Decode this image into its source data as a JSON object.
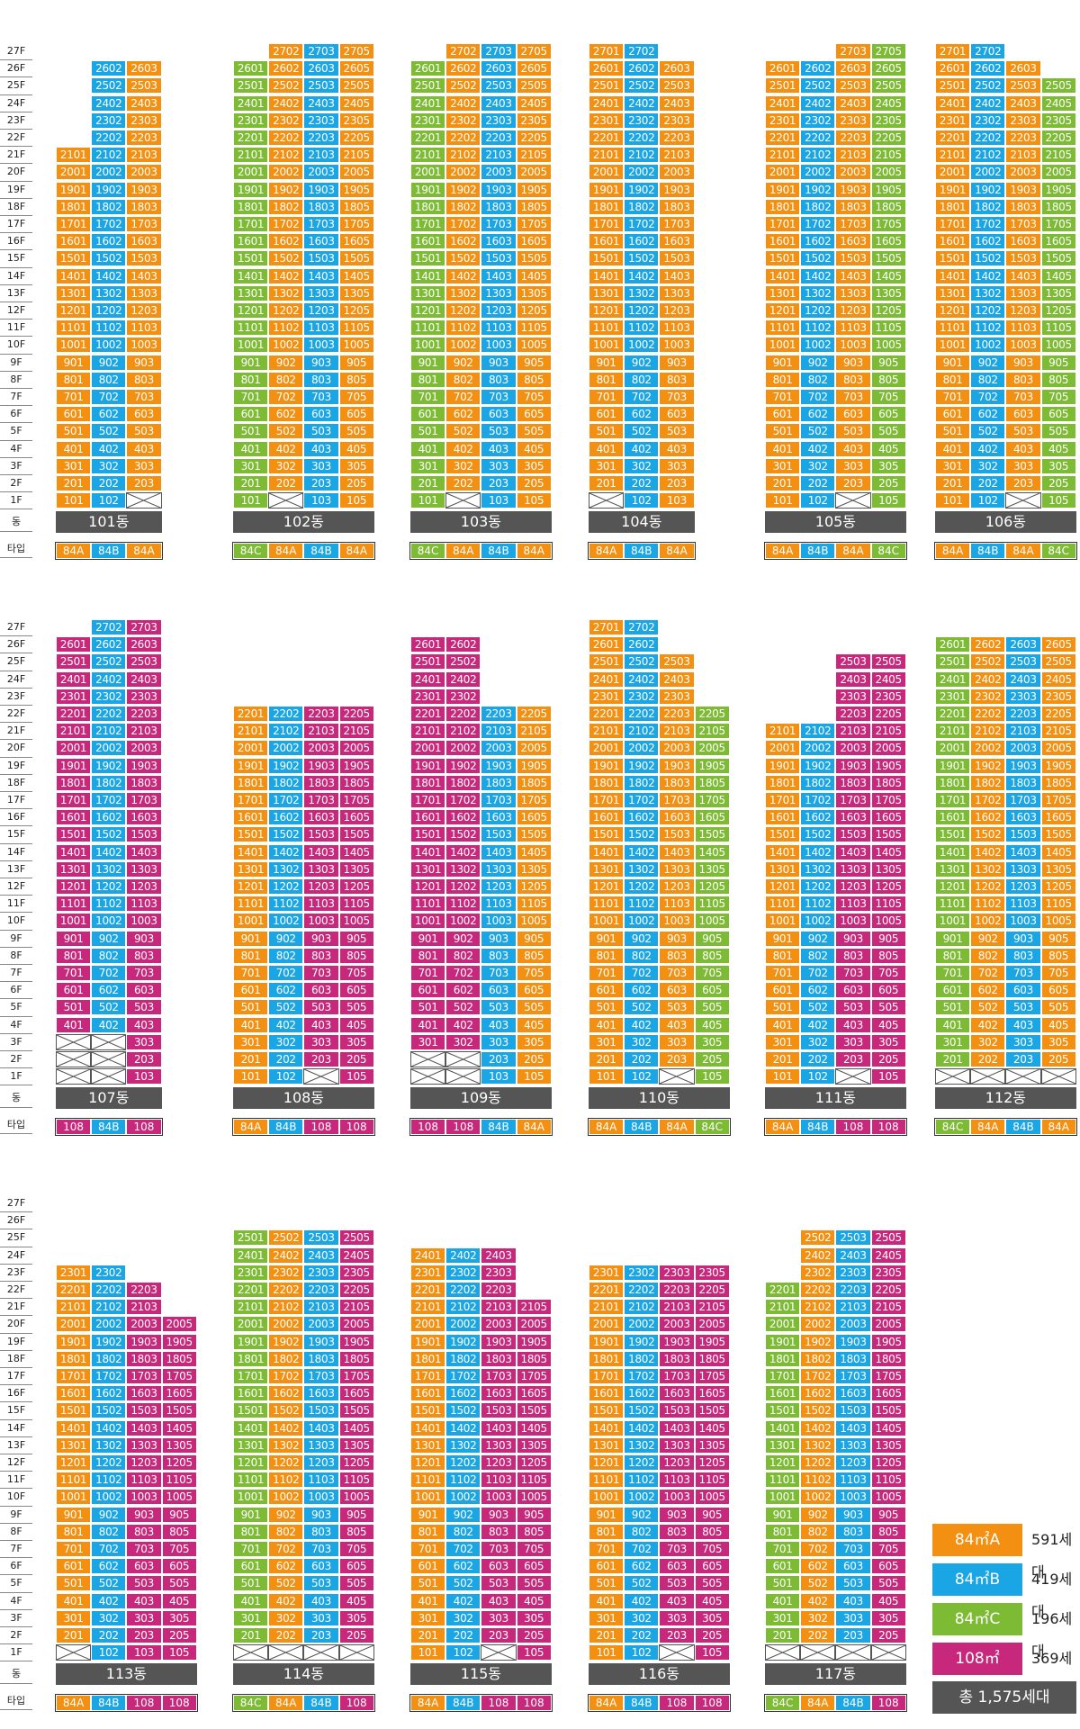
{
  "colors": {
    "84A": "#f39012",
    "84B": "#1aa6e4",
    "84C": "#7dbb35",
    "108": "#c8287b"
  },
  "labels": {
    "dong": "동",
    "type": "타입"
  },
  "floors": [
    "27F",
    "26F",
    "25F",
    "24F",
    "23F",
    "22F",
    "21F",
    "20F",
    "19F",
    "18F",
    "17F",
    "16F",
    "15F",
    "14F",
    "13F",
    "12F",
    "11F",
    "10F",
    "9F",
    "8F",
    "7F",
    "6F",
    "5F",
    "4F",
    "3F",
    "2F",
    "1F"
  ],
  "buildings": [
    {
      "name": "101동",
      "cols": [
        {
          "line": 1,
          "type": "84A",
          "min": 1,
          "max": 21
        },
        {
          "line": 2,
          "type": "84B",
          "min": 1,
          "max": 26
        },
        {
          "line": 3,
          "type": "84A",
          "min": 2,
          "max": 26
        }
      ],
      "types": [
        "84A",
        "84B",
        "84A"
      ]
    },
    {
      "name": "102동",
      "cols": [
        {
          "line": 1,
          "type": "84C",
          "min": 1,
          "max": 26
        },
        {
          "line": 2,
          "type": "84A",
          "min": 2,
          "max": 27
        },
        {
          "line": 3,
          "type": "84B",
          "min": 1,
          "max": 27
        },
        {
          "line": 5,
          "type": "84A",
          "min": 1,
          "max": 27
        }
      ],
      "types": [
        "84C",
        "84A",
        "84B",
        "84A"
      ]
    },
    {
      "name": "103동",
      "cols": [
        {
          "line": 1,
          "type": "84C",
          "min": 1,
          "max": 26
        },
        {
          "line": 2,
          "type": "84A",
          "min": 2,
          "max": 27
        },
        {
          "line": 3,
          "type": "84B",
          "min": 1,
          "max": 27
        },
        {
          "line": 5,
          "type": "84A",
          "min": 1,
          "max": 27
        }
      ],
      "types": [
        "84C",
        "84A",
        "84B",
        "84A"
      ]
    },
    {
      "name": "104동",
      "cols": [
        {
          "line": 1,
          "type": "84A",
          "min": 2,
          "max": 27
        },
        {
          "line": 2,
          "type": "84B",
          "min": 1,
          "max": 27
        },
        {
          "line": 3,
          "type": "84A",
          "min": 1,
          "max": 26
        }
      ],
      "types": [
        "84A",
        "84B",
        "84A"
      ]
    },
    {
      "name": "105동",
      "cols": [
        {
          "line": 1,
          "type": "84A",
          "min": 1,
          "max": 26
        },
        {
          "line": 2,
          "type": "84B",
          "min": 1,
          "max": 26
        },
        {
          "line": 3,
          "type": "84A",
          "min": 2,
          "max": 27
        },
        {
          "line": 5,
          "type": "84C",
          "min": 1,
          "max": 27
        }
      ],
      "types": [
        "84A",
        "84B",
        "84A",
        "84C"
      ]
    },
    {
      "name": "106동",
      "cols": [
        {
          "line": 1,
          "type": "84A",
          "min": 1,
          "max": 27
        },
        {
          "line": 2,
          "type": "84B",
          "min": 1,
          "max": 27
        },
        {
          "line": 3,
          "type": "84A",
          "min": 2,
          "max": 26
        },
        {
          "line": 5,
          "type": "84C",
          "min": 1,
          "max": 25
        }
      ],
      "types": [
        "84A",
        "84B",
        "84A",
        "84C"
      ]
    },
    {
      "name": "107동",
      "cols": [
        {
          "line": 1,
          "type": "108",
          "min": 4,
          "max": 26
        },
        {
          "line": 2,
          "type": "84B",
          "min": 4,
          "max": 27
        },
        {
          "line": 3,
          "type": "108",
          "min": 1,
          "max": 27
        }
      ],
      "types": [
        "108",
        "84B",
        "108"
      ]
    },
    {
      "name": "108동",
      "cols": [
        {
          "line": 1,
          "type": "84A",
          "min": 1,
          "max": 22
        },
        {
          "line": 2,
          "type": "84B",
          "min": 1,
          "max": 22
        },
        {
          "line": 3,
          "type": "108",
          "min": 2,
          "max": 22
        },
        {
          "line": 5,
          "type": "108",
          "min": 1,
          "max": 22
        }
      ],
      "types": [
        "84A",
        "84B",
        "108",
        "108"
      ]
    },
    {
      "name": "109동",
      "cols": [
        {
          "line": 1,
          "type": "108",
          "min": 3,
          "max": 26
        },
        {
          "line": 2,
          "type": "108",
          "min": 3,
          "max": 26
        },
        {
          "line": 3,
          "type": "84B",
          "min": 1,
          "max": 22
        },
        {
          "line": 5,
          "type": "84A",
          "min": 1,
          "max": 22
        }
      ],
      "types": [
        "108",
        "108",
        "84B",
        "84A"
      ]
    },
    {
      "name": "110동",
      "cols": [
        {
          "line": 1,
          "type": "84A",
          "min": 1,
          "max": 27
        },
        {
          "line": 2,
          "type": "84B",
          "min": 1,
          "max": 27
        },
        {
          "line": 3,
          "type": "84A",
          "min": 2,
          "max": 25
        },
        {
          "line": 5,
          "type": "84C",
          "min": 1,
          "max": 22
        }
      ],
      "types": [
        "84A",
        "84B",
        "84A",
        "84C"
      ]
    },
    {
      "name": "111동",
      "cols": [
        {
          "line": 1,
          "type": "84A",
          "min": 1,
          "max": 21
        },
        {
          "line": 2,
          "type": "84B",
          "min": 1,
          "max": 21
        },
        {
          "line": 3,
          "type": "108",
          "min": 2,
          "max": 25
        },
        {
          "line": 5,
          "type": "108",
          "min": 1,
          "max": 25
        }
      ],
      "types": [
        "84A",
        "84B",
        "108",
        "108"
      ]
    },
    {
      "name": "112동",
      "cols": [
        {
          "line": 1,
          "type": "84C",
          "min": 2,
          "max": 26
        },
        {
          "line": 2,
          "type": "84A",
          "min": 2,
          "max": 26
        },
        {
          "line": 3,
          "type": "84B",
          "min": 2,
          "max": 26
        },
        {
          "line": 5,
          "type": "84A",
          "min": 2,
          "max": 26
        }
      ],
      "types": [
        "84C",
        "84A",
        "84B",
        "84A"
      ]
    },
    {
      "name": "113동",
      "cols": [
        {
          "line": 1,
          "type": "84A",
          "min": 2,
          "max": 23
        },
        {
          "line": 2,
          "type": "84B",
          "min": 1,
          "max": 23
        },
        {
          "line": 3,
          "type": "108",
          "min": 1,
          "max": 22
        },
        {
          "line": 5,
          "type": "108",
          "min": 1,
          "max": 20
        }
      ],
      "types": [
        "84A",
        "84B",
        "108",
        "108"
      ]
    },
    {
      "name": "114동",
      "cols": [
        {
          "line": 1,
          "type": "84C",
          "min": 2,
          "max": 25
        },
        {
          "line": 2,
          "type": "84A",
          "min": 2,
          "max": 25
        },
        {
          "line": 3,
          "type": "84B",
          "min": 2,
          "max": 25
        },
        {
          "line": 5,
          "type": "108",
          "min": 2,
          "max": 25
        }
      ],
      "types": [
        "84C",
        "84A",
        "84B",
        "108"
      ]
    },
    {
      "name": "115동",
      "cols": [
        {
          "line": 1,
          "type": "84A",
          "min": 1,
          "max": 24
        },
        {
          "line": 2,
          "type": "84B",
          "min": 1,
          "max": 24
        },
        {
          "line": 3,
          "type": "108",
          "min": 2,
          "max": 24
        },
        {
          "line": 5,
          "type": "108",
          "min": 1,
          "max": 21
        }
      ],
      "types": [
        "84A",
        "84B",
        "108",
        "108"
      ]
    },
    {
      "name": "116동",
      "cols": [
        {
          "line": 1,
          "type": "84A",
          "min": 1,
          "max": 23
        },
        {
          "line": 2,
          "type": "84B",
          "min": 1,
          "max": 23
        },
        {
          "line": 3,
          "type": "108",
          "min": 2,
          "max": 23
        },
        {
          "line": 5,
          "type": "108",
          "min": 1,
          "max": 23
        }
      ],
      "types": [
        "84A",
        "84B",
        "108",
        "108"
      ]
    },
    {
      "name": "117동",
      "cols": [
        {
          "line": 1,
          "type": "84C",
          "min": 2,
          "max": 22
        },
        {
          "line": 2,
          "type": "84A",
          "min": 2,
          "max": 25
        },
        {
          "line": 3,
          "type": "84B",
          "min": 2,
          "max": 25
        },
        {
          "line": 5,
          "type": "108",
          "min": 2,
          "max": 25
        }
      ],
      "types": [
        "84C",
        "84A",
        "84B",
        "108"
      ]
    }
  ],
  "legend": [
    {
      "type": "84A",
      "label": "84㎡A",
      "count": "591세대"
    },
    {
      "type": "84B",
      "label": "84㎡B",
      "count": "419세대"
    },
    {
      "type": "84C",
      "label": "84㎡C",
      "count": "196세대"
    },
    {
      "type": "108",
      "label": "108㎡",
      "count": "369세대"
    }
  ],
  "total": "총 1,575세대"
}
